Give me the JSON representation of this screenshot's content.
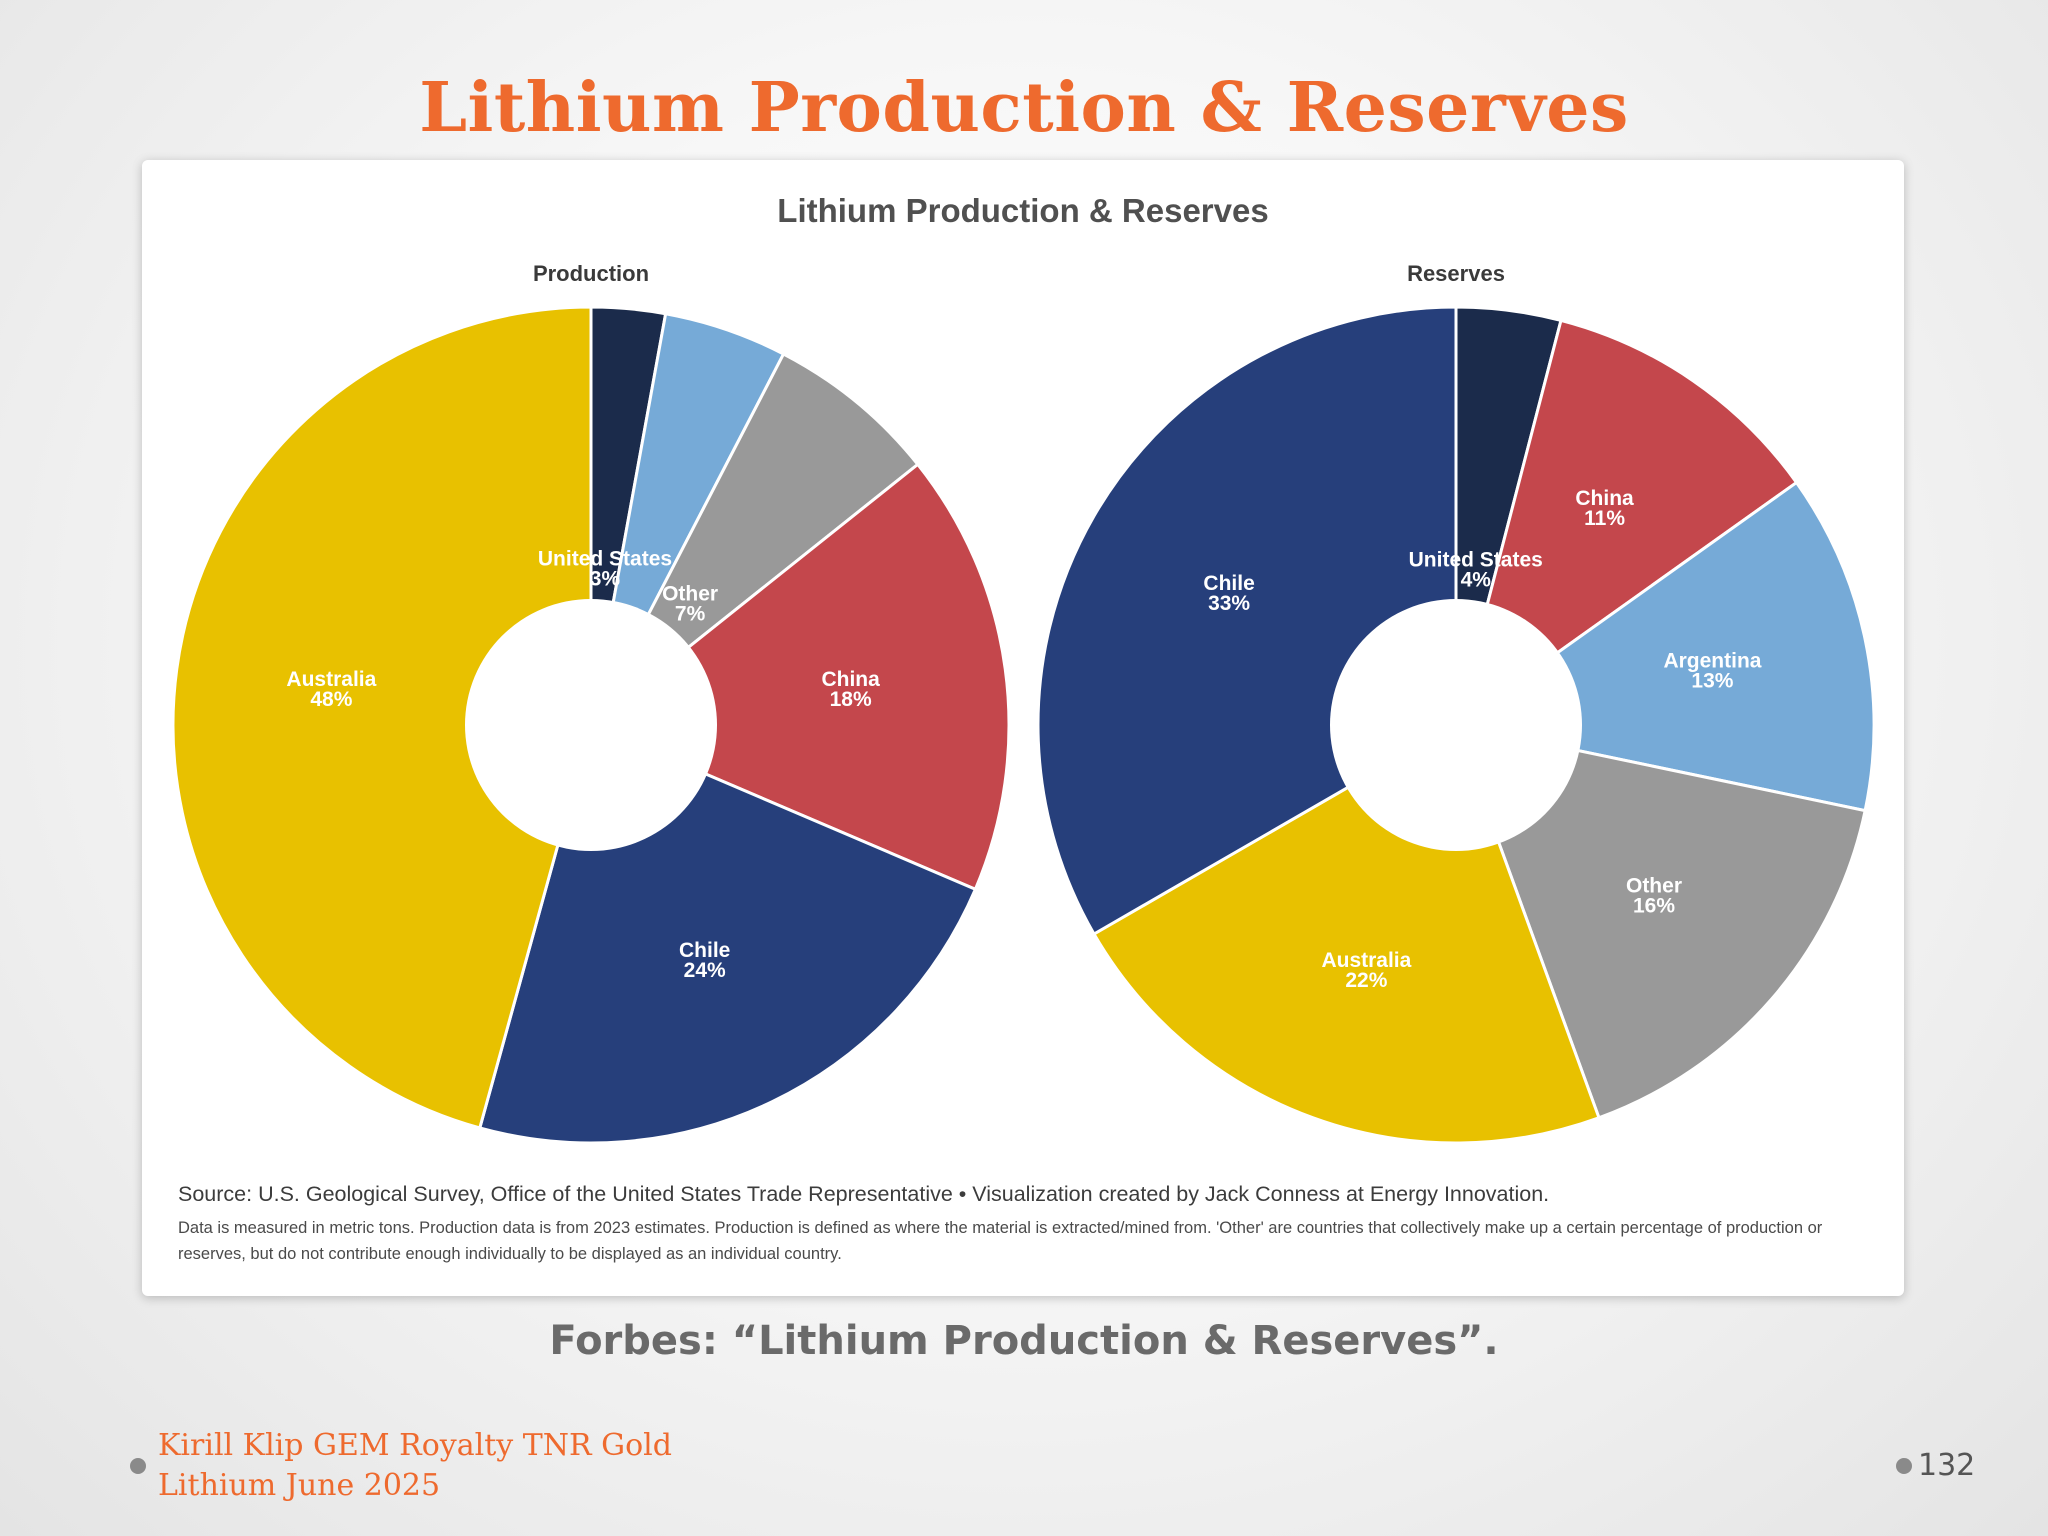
{
  "slide": {
    "title": "Lithium Production & Reserves",
    "caption": "Forbes: “Lithium Production & Reserves”.",
    "footer_line1": "Kirill Klip GEM Royalty TNR Gold",
    "footer_line2": "Lithium June 2025",
    "page_number": "132"
  },
  "chart_data": {
    "type": "pie",
    "title": "Lithium Production & Reserves",
    "source": "Source: U.S. Geological Survey, Office of the United States Trade Representative • Visualization created by Jack Conness at Energy Innovation.",
    "note": "Data is measured in metric tons. Production data is from 2023 estimates. Production is defined as where the material is extracted/mined from. 'Other' are countries that collectively make up a certain percentage of production or reserves, but do not contribute enough individually to be displayed as an individual country.",
    "charts": [
      {
        "subtitle": "Production",
        "slices": [
          {
            "label": "United States",
            "value": 3,
            "value_label": "3%",
            "color": "#1b2b4b"
          },
          {
            "label": "",
            "value": 5,
            "value_label": "",
            "color": "#76aad7"
          },
          {
            "label": "Other",
            "value": 7,
            "value_label": "7%",
            "color": "#999999"
          },
          {
            "label": "China",
            "value": 18,
            "value_label": "18%",
            "color": "#c4474c"
          },
          {
            "label": "Chile",
            "value": 24,
            "value_label": "24%",
            "color": "#263f7b"
          },
          {
            "label": "Australia",
            "value": 48,
            "value_label": "48%",
            "color": "#e8c100"
          }
        ]
      },
      {
        "subtitle": "Reserves",
        "slices": [
          {
            "label": "United States",
            "value": 4,
            "value_label": "4%",
            "color": "#1b2b4b"
          },
          {
            "label": "China",
            "value": 11,
            "value_label": "11%",
            "color": "#c4474c"
          },
          {
            "label": "Argentina",
            "value": 13,
            "value_label": "13%",
            "color": "#76aad7"
          },
          {
            "label": "Other",
            "value": 16,
            "value_label": "16%",
            "color": "#999999"
          },
          {
            "label": "Australia",
            "value": 22,
            "value_label": "22%",
            "color": "#e8c100"
          },
          {
            "label": "Chile",
            "value": 33,
            "value_label": "33%",
            "color": "#263f7b"
          }
        ]
      }
    ]
  }
}
